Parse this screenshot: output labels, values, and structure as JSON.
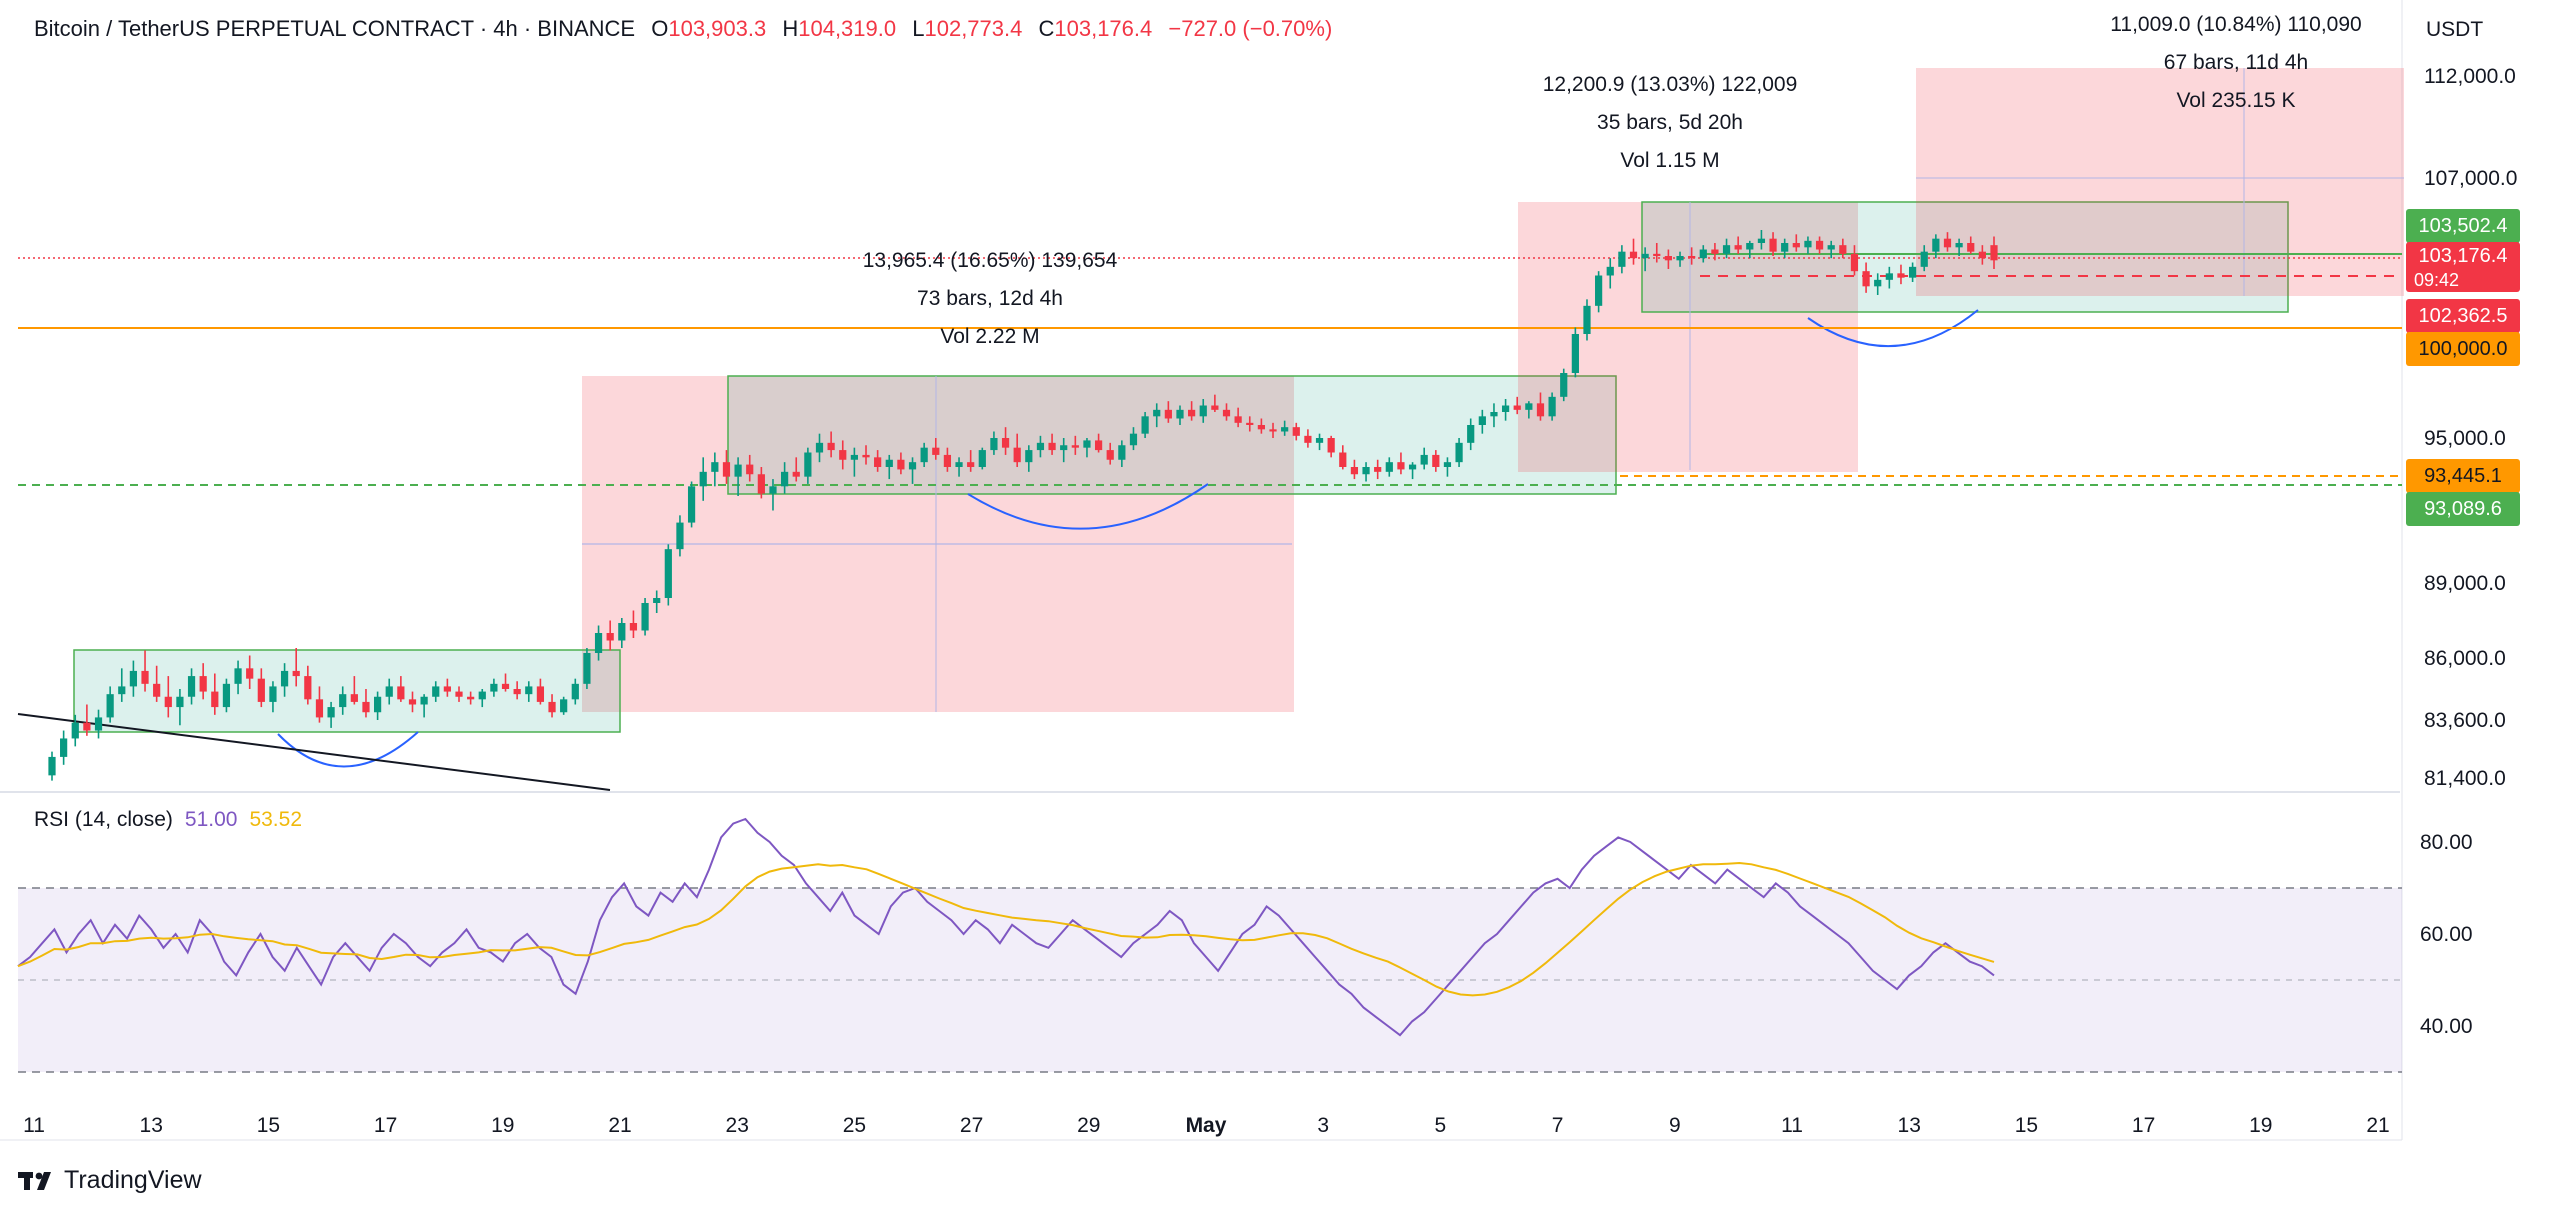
{
  "header": {
    "symbol": "Bitcoin / TetherUS PERPETUAL CONTRACT · 4h · BINANCE",
    "open_label": "O",
    "open": "103,903.3",
    "high_label": "H",
    "high": "104,319.0",
    "low_label": "L",
    "low": "102,773.4",
    "close_label": "C",
    "close": "103,176.4",
    "change": "−727.0 (−0.70%)"
  },
  "currency": "USDT",
  "rsi": {
    "label": "RSI (14, close)",
    "value": "51.00",
    "ma": "53.52"
  },
  "brand": "TradingView",
  "colors": {
    "up": "#089981",
    "down": "#f23645",
    "rsi": "#7e57c2",
    "rsi_ma": "#f0b90b",
    "orange": "#ff9800",
    "green_tag": "#4caf50"
  },
  "price_tags": {
    "a": "103,502.4",
    "last": "103,176.4",
    "countdown": "09:42",
    "c": "102,362.5",
    "d": "100,000.0",
    "e": "93,445.1",
    "f": "93,089.6"
  },
  "measurements": [
    {
      "line1": "13,965.4 (16.65%) 139,654",
      "line2": "73 bars, 12d 4h",
      "line3": "Vol 2.22 M"
    },
    {
      "line1": "12,200.9 (13.03%) 122,009",
      "line2": "35 bars, 5d 20h",
      "line3": "Vol 1.15 M"
    },
    {
      "line1": "11,009.0 (10.84%) 110,090",
      "line2": "67 bars, 11d 4h",
      "line3": "Vol 235.15 K"
    }
  ],
  "chart_data": {
    "type": "candlestick",
    "price_axis_ticks": [
      "112,000.0",
      "107,000.0",
      "95,000.0",
      "89,000.0",
      "86,000.0",
      "83,600.0",
      "81,400.0"
    ],
    "rsi_axis_ticks": [
      "80.00",
      "60.00",
      "40.00"
    ],
    "x_tick_labels": [
      "11",
      "13",
      "15",
      "17",
      "19",
      "21",
      "23",
      "25",
      "27",
      "29",
      "May",
      "3",
      "5",
      "7",
      "9",
      "11",
      "13",
      "15",
      "17",
      "19",
      "21"
    ],
    "ohlc": [
      [
        81500,
        82400,
        81300,
        82200
      ],
      [
        82200,
        83200,
        81900,
        82900
      ],
      [
        82900,
        83800,
        82600,
        83500
      ],
      [
        83500,
        84200,
        83000,
        83200
      ],
      [
        83200,
        84000,
        82900,
        83700
      ],
      [
        83700,
        84900,
        83500,
        84600
      ],
      [
        84600,
        85600,
        84300,
        84900
      ],
      [
        84900,
        85900,
        84500,
        85500
      ],
      [
        85500,
        86300,
        84700,
        85000
      ],
      [
        85000,
        85700,
        84300,
        84500
      ],
      [
        84500,
        85300,
        83700,
        84100
      ],
      [
        84100,
        84800,
        83400,
        84500
      ],
      [
        84500,
        85600,
        84200,
        85300
      ],
      [
        85300,
        85800,
        84400,
        84700
      ],
      [
        84700,
        85400,
        83800,
        84100
      ],
      [
        84100,
        85200,
        83900,
        85000
      ],
      [
        85000,
        85900,
        84600,
        85600
      ],
      [
        85600,
        86100,
        84800,
        85200
      ],
      [
        85200,
        85600,
        84100,
        84300
      ],
      [
        84300,
        85100,
        83900,
        84900
      ],
      [
        84900,
        85800,
        84500,
        85500
      ],
      [
        85500,
        86400,
        84900,
        85300
      ],
      [
        85300,
        85700,
        84200,
        84400
      ],
      [
        84400,
        84900,
        83500,
        83700
      ],
      [
        83700,
        84300,
        83300,
        84100
      ],
      [
        84100,
        84900,
        83800,
        84600
      ],
      [
        84600,
        85300,
        84200,
        84300
      ],
      [
        84300,
        84800,
        83700,
        83900
      ],
      [
        83900,
        84700,
        83600,
        84500
      ],
      [
        84500,
        85200,
        84200,
        84900
      ],
      [
        84900,
        85300,
        84300,
        84400
      ],
      [
        84400,
        84700,
        83900,
        84200
      ],
      [
        84200,
        84600,
        83700,
        84500
      ],
      [
        84500,
        85100,
        84300,
        84900
      ],
      [
        84900,
        85200,
        84500,
        84700
      ],
      [
        84700,
        84900,
        84300,
        84500
      ],
      [
        84500,
        84700,
        84200,
        84400
      ],
      [
        84400,
        84800,
        84100,
        84700
      ],
      [
        84700,
        85200,
        84500,
        85000
      ],
      [
        85000,
        85400,
        84700,
        84800
      ],
      [
        84800,
        85100,
        84400,
        84600
      ],
      [
        84600,
        85100,
        84300,
        84900
      ],
      [
        84900,
        85200,
        84200,
        84300
      ],
      [
        84300,
        84600,
        83700,
        83900
      ],
      [
        83900,
        84500,
        83800,
        84400
      ],
      [
        84400,
        85200,
        84200,
        85000
      ],
      [
        85000,
        86400,
        84800,
        86200
      ],
      [
        86200,
        87300,
        85900,
        87000
      ],
      [
        87000,
        87500,
        86300,
        86700
      ],
      [
        86700,
        87600,
        86400,
        87400
      ],
      [
        87400,
        87900,
        86800,
        87100
      ],
      [
        87100,
        88400,
        86900,
        88200
      ],
      [
        88200,
        88700,
        87800,
        88400
      ],
      [
        88400,
        90600,
        88100,
        90400
      ],
      [
        90400,
        91800,
        90100,
        91500
      ],
      [
        91500,
        93200,
        91300,
        93000
      ],
      [
        93000,
        94200,
        92400,
        93600
      ],
      [
        93600,
        94400,
        93000,
        94000
      ],
      [
        94000,
        94500,
        93100,
        93400
      ],
      [
        93400,
        94200,
        92600,
        93900
      ],
      [
        93900,
        94300,
        93200,
        93500
      ],
      [
        93500,
        93800,
        92500,
        92700
      ],
      [
        92700,
        93300,
        92000,
        93000
      ],
      [
        93000,
        94000,
        92700,
        93600
      ],
      [
        93600,
        94200,
        93200,
        93400
      ],
      [
        93400,
        94600,
        93100,
        94400
      ],
      [
        94400,
        95200,
        94000,
        94800
      ],
      [
        94800,
        95300,
        94200,
        94500
      ],
      [
        94500,
        94900,
        93700,
        94100
      ],
      [
        94100,
        94600,
        93400,
        94300
      ],
      [
        94300,
        94700,
        93900,
        94200
      ],
      [
        94200,
        94500,
        93600,
        93800
      ],
      [
        93800,
        94300,
        93300,
        94100
      ],
      [
        94100,
        94400,
        93500,
        93700
      ],
      [
        93700,
        94200,
        93100,
        94000
      ],
      [
        94000,
        94800,
        93800,
        94600
      ],
      [
        94600,
        95000,
        94100,
        94300
      ],
      [
        94300,
        94600,
        93600,
        93800
      ],
      [
        93800,
        94200,
        93400,
        94000
      ],
      [
        94000,
        94500,
        93600,
        93800
      ],
      [
        93800,
        94600,
        93700,
        94500
      ],
      [
        94500,
        95300,
        94300,
        95000
      ],
      [
        95000,
        95500,
        94300,
        94600
      ],
      [
        94600,
        95200,
        93800,
        94000
      ],
      [
        94000,
        94700,
        93600,
        94500
      ],
      [
        94500,
        95100,
        94200,
        94800
      ],
      [
        94800,
        95200,
        94300,
        94500
      ],
      [
        94500,
        95000,
        94000,
        94700
      ],
      [
        94700,
        95100,
        94300,
        94600
      ],
      [
        94600,
        95000,
        94200,
        94900
      ],
      [
        94900,
        95200,
        94400,
        94500
      ],
      [
        94500,
        94800,
        93900,
        94100
      ],
      [
        94100,
        94900,
        93800,
        94700
      ],
      [
        94700,
        95500,
        94500,
        95200
      ],
      [
        95200,
        96200,
        95000,
        96000
      ],
      [
        96000,
        96600,
        95500,
        96300
      ],
      [
        96300,
        96700,
        95700,
        95900
      ],
      [
        95900,
        96500,
        95600,
        96300
      ],
      [
        96300,
        96700,
        95800,
        96000
      ],
      [
        96000,
        96800,
        95700,
        96500
      ],
      [
        96500,
        97000,
        96200,
        96300
      ],
      [
        96300,
        96600,
        95800,
        96000
      ],
      [
        96000,
        96400,
        95500,
        95700
      ],
      [
        95700,
        96000,
        95300,
        95600
      ],
      [
        95600,
        95900,
        95200,
        95400
      ],
      [
        95400,
        95700,
        95000,
        95300
      ],
      [
        95300,
        95800,
        95100,
        95500
      ],
      [
        95500,
        95700,
        94900,
        95100
      ],
      [
        95100,
        95400,
        94600,
        94800
      ],
      [
        94800,
        95200,
        94500,
        95000
      ],
      [
        95000,
        95100,
        94200,
        94400
      ],
      [
        94400,
        94700,
        93700,
        93800
      ],
      [
        93800,
        94100,
        93300,
        93500
      ],
      [
        93500,
        94000,
        93200,
        93800
      ],
      [
        93800,
        94100,
        93300,
        93600
      ],
      [
        93600,
        94200,
        93400,
        94000
      ],
      [
        94000,
        94400,
        93500,
        93700
      ],
      [
        93700,
        94000,
        93300,
        93900
      ],
      [
        93900,
        94600,
        93700,
        94300
      ],
      [
        94300,
        94500,
        93600,
        93800
      ],
      [
        93800,
        94200,
        93400,
        94000
      ],
      [
        94000,
        95000,
        93800,
        94800
      ],
      [
        94800,
        95900,
        94500,
        95600
      ],
      [
        95600,
        96300,
        95200,
        96000
      ],
      [
        96000,
        96600,
        95500,
        96200
      ],
      [
        96200,
        96800,
        95800,
        96500
      ],
      [
        96500,
        96900,
        96100,
        96300
      ],
      [
        96300,
        96700,
        95900,
        96600
      ],
      [
        96600,
        97100,
        95800,
        96000
      ],
      [
        96000,
        97100,
        95800,
        96900
      ],
      [
        96900,
        98200,
        96700,
        98000
      ],
      [
        98000,
        100100,
        97800,
        99800
      ],
      [
        99800,
        101400,
        99500,
        101100
      ],
      [
        101100,
        102700,
        100800,
        102500
      ],
      [
        102500,
        103300,
        101900,
        102900
      ],
      [
        102900,
        103900,
        102600,
        103600
      ],
      [
        103600,
        104200,
        103000,
        103300
      ],
      [
        103300,
        103800,
        102700,
        103500
      ],
      [
        103500,
        104000,
        103100,
        103400
      ],
      [
        103400,
        103700,
        102800,
        103200
      ],
      [
        103200,
        103600,
        102900,
        103400
      ],
      [
        103400,
        103800,
        103000,
        103300
      ],
      [
        103300,
        103900,
        103100,
        103700
      ],
      [
        103700,
        104000,
        103200,
        103500
      ],
      [
        103500,
        104200,
        103300,
        103900
      ],
      [
        103900,
        104300,
        103500,
        103700
      ],
      [
        103700,
        104100,
        103300,
        104000
      ],
      [
        104000,
        104600,
        103700,
        104200
      ],
      [
        104200,
        104500,
        103400,
        103600
      ],
      [
        103600,
        104200,
        103300,
        104000
      ],
      [
        104000,
        104400,
        103600,
        103800
      ],
      [
        103800,
        104300,
        103500,
        104100
      ],
      [
        104100,
        104300,
        103500,
        103700
      ],
      [
        103700,
        104100,
        103300,
        103900
      ],
      [
        103900,
        104200,
        103300,
        103500
      ],
      [
        103500,
        103900,
        102500,
        102700
      ],
      [
        102700,
        103100,
        101700,
        102000
      ],
      [
        102000,
        102600,
        101600,
        102300
      ],
      [
        102300,
        102900,
        101900,
        102600
      ],
      [
        102600,
        103000,
        102100,
        102400
      ],
      [
        102400,
        103100,
        102200,
        102900
      ],
      [
        102900,
        103900,
        102700,
        103600
      ],
      [
        103600,
        104400,
        103300,
        104200
      ],
      [
        104200,
        104500,
        103600,
        103800
      ],
      [
        103800,
        104200,
        103400,
        104000
      ],
      [
        104000,
        104300,
        103500,
        103600
      ],
      [
        103600,
        103900,
        103000,
        103300
      ],
      [
        103900,
        104300,
        102800,
        103200
      ]
    ],
    "rsi_values": [
      53,
      55,
      58,
      61,
      56,
      60,
      63,
      58,
      62,
      59,
      64,
      61,
      57,
      60,
      56,
      63,
      60,
      54,
      51,
      56,
      60,
      55,
      52,
      57,
      53,
      49,
      55,
      58,
      55,
      52,
      57,
      60,
      58,
      55,
      53,
      56,
      58,
      61,
      57,
      56,
      54,
      58,
      60,
      57,
      55,
      49,
      47,
      54,
      63,
      68,
      71,
      66,
      64,
      69,
      67,
      71,
      68,
      74,
      81,
      84,
      85,
      82,
      80,
      77,
      75,
      71,
      68,
      65,
      69,
      64,
      62,
      60,
      66,
      69,
      70,
      67,
      65,
      63,
      60,
      63,
      61,
      58,
      62,
      60,
      58,
      57,
      60,
      63,
      61,
      59,
      57,
      55,
      58,
      60,
      62,
      65,
      63,
      58,
      55,
      52,
      56,
      60,
      62,
      66,
      64,
      61,
      58,
      55,
      52,
      49,
      47,
      44,
      42,
      40,
      38,
      41,
      43,
      46,
      49,
      52,
      55,
      58,
      60,
      63,
      66,
      69,
      71,
      72,
      70,
      74,
      77,
      79,
      81,
      80,
      78,
      76,
      74,
      72,
      75,
      73,
      71,
      74,
      72,
      70,
      68,
      71,
      69,
      66,
      64,
      62,
      60,
      58,
      55,
      52,
      50,
      48,
      51,
      53,
      56,
      58,
      56,
      54,
      53,
      51
    ]
  }
}
